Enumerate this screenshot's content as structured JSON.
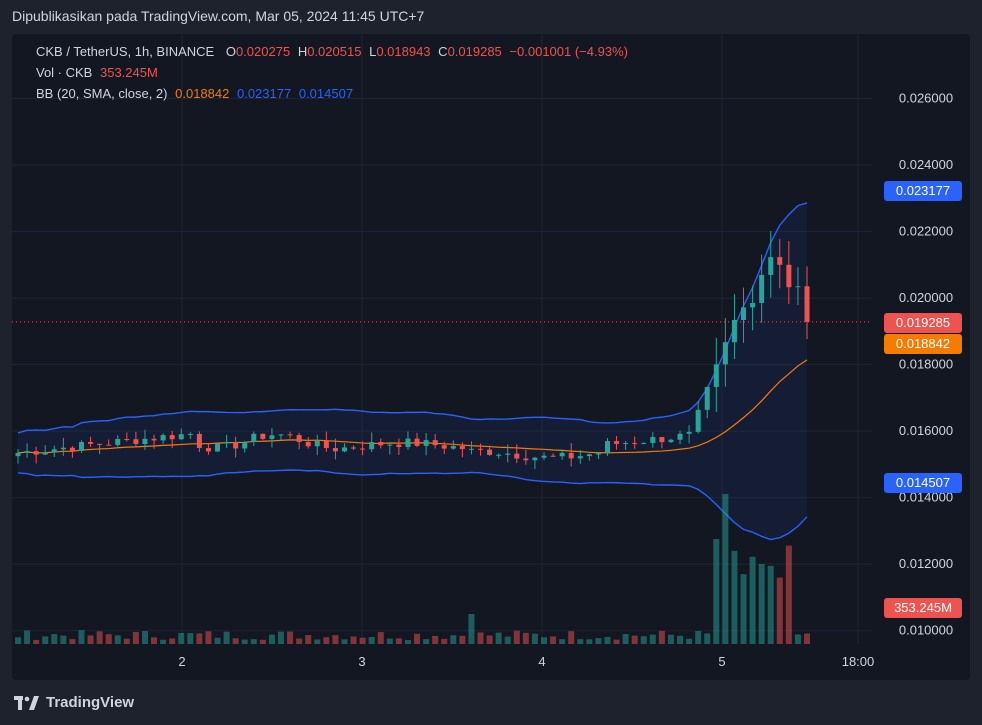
{
  "header": {
    "published": "Dipublikasikan pada TradingView.com, Mar 05, 2024 11:45 UTC+7"
  },
  "legend": {
    "symbol": "CKB / TetherUS, 1h, BINANCE",
    "o_label": "O",
    "o": "0.020275",
    "h_label": "H",
    "h": "0.020515",
    "l_label": "L",
    "l": "0.018943",
    "c_label": "C",
    "c": "0.019285",
    "change": "−0.001001 (−4.93%)",
    "vol_label": "Vol · CKB",
    "vol": "353.245M",
    "bb_label": "BB (20, SMA, close, 2)",
    "bb_basis": "0.018842",
    "bb_upper": "0.023177",
    "bb_lower": "0.014507"
  },
  "price_tags": {
    "upper": "0.023177",
    "last": "0.019285",
    "basis": "0.018842",
    "lower": "0.014507",
    "volume": "353.245M"
  },
  "colors": {
    "up": "#26a69a",
    "down": "#ef5350",
    "upper_band": "#2962ff",
    "basis": "#f57c00",
    "bg": "#131722"
  },
  "brand": {
    "name": "TradingView",
    "icon": "tradingview-logo-icon"
  },
  "chart_data": {
    "type": "candlestick",
    "symbol": "CKB / TetherUS",
    "interval": "1h",
    "y_ticks": [
      "0.026000",
      "0.024000",
      "0.022000",
      "0.020000",
      "0.018000",
      "0.016000",
      "0.014000",
      "0.012000",
      "0.010000"
    ],
    "ylim": [
      0.0096,
      0.0277
    ],
    "x_ticks": [
      "2",
      "3",
      "4",
      "5",
      "18:00"
    ],
    "candles_count": 88,
    "overlays": [
      "Bollinger Bands (20, SMA, close, 2)",
      "Volume"
    ],
    "last_close": 0.019285,
    "bb_last": {
      "upper": 0.023177,
      "basis": 0.018842,
      "lower": 0.014507
    },
    "volume_last": "353.245M"
  }
}
